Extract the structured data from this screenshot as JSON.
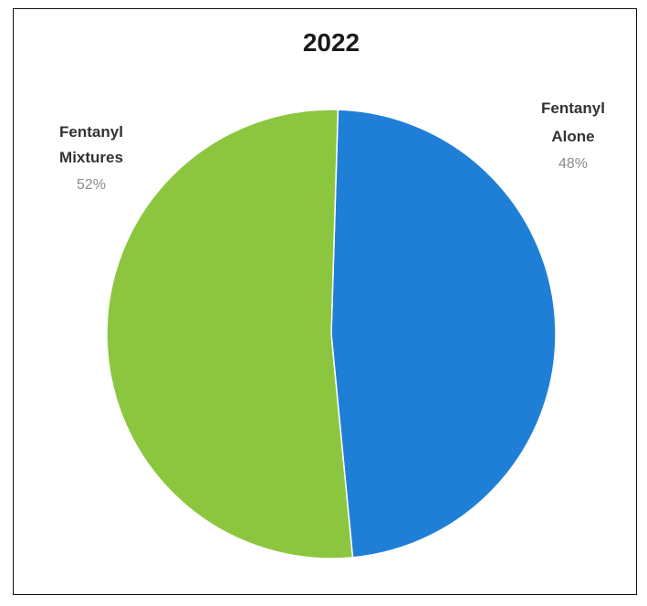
{
  "chart_data": {
    "type": "pie",
    "title": "2022",
    "slices": [
      {
        "label_lines": [
          "Fentanyl",
          "Alone"
        ],
        "value": 48,
        "value_label": "48%",
        "color": "#1f7fd6"
      },
      {
        "label_lines": [
          "Fentanyl",
          "Mixtures"
        ],
        "value": 52,
        "value_label": "52%",
        "color": "#8cc63f"
      }
    ],
    "legend": "none"
  }
}
